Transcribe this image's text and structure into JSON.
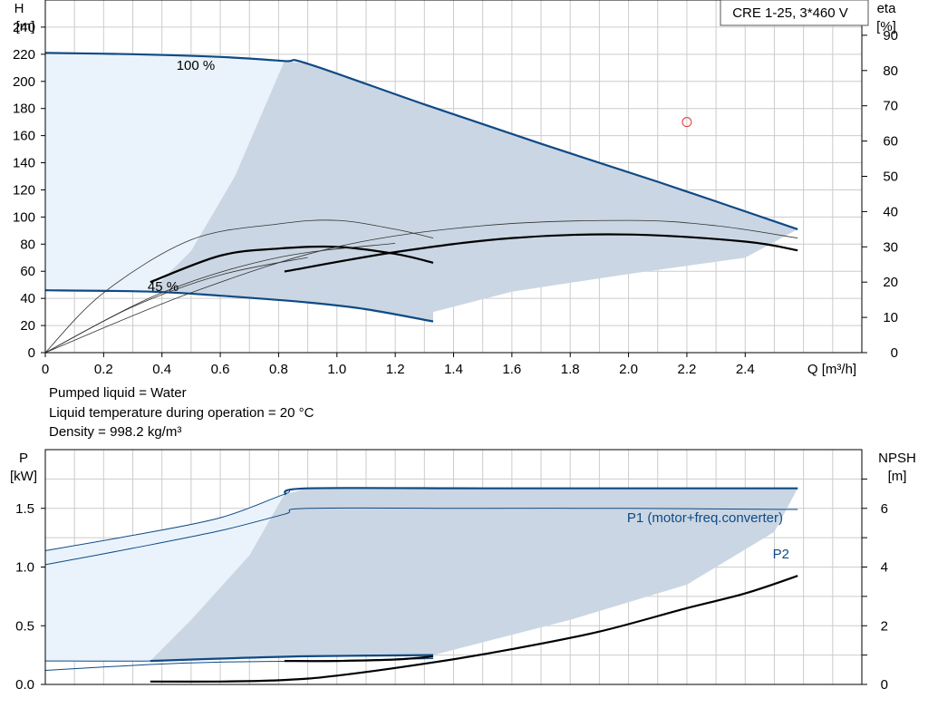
{
  "colors": {
    "curve_blue": "#0e4a85",
    "area_dark": "#cad6e3",
    "area_light": "#eaf3fb",
    "grid": "#cccccc",
    "duty_marker": "#e03030",
    "curve_black": "#000000"
  },
  "info": {
    "liquid": "Pumped liquid = Water",
    "temperature": "Liquid temperature during operation = 20 °C",
    "density": "Density = 998.2 kg/m³"
  },
  "chart_data": [
    {
      "type": "line",
      "title": "CRE 1-25, 3*460 V",
      "xlabel": "Q [m³/h]",
      "ylabel": "H\n[m]",
      "y2label": "eta\n[%]",
      "xlim": [
        0,
        2.8
      ],
      "ylim": [
        0,
        260
      ],
      "y2lim": [
        0,
        100
      ],
      "xticks": [
        "0",
        "0.2",
        "0.4",
        "0.6",
        "0.8",
        "1.0",
        "1.2",
        "1.4",
        "1.6",
        "1.8",
        "2.0",
        "2.2",
        "2.4"
      ],
      "yticks": [
        "0",
        "20",
        "40",
        "60",
        "80",
        "100",
        "120",
        "140",
        "160",
        "180",
        "200",
        "220",
        "240"
      ],
      "y2ticks": [
        "0",
        "10",
        "20",
        "30",
        "40",
        "50",
        "60",
        "70",
        "80",
        "90"
      ],
      "grid": true,
      "annotations": [
        "100 %",
        "45 %"
      ],
      "series": [
        {
          "role": "head-max",
          "x": [
            0,
            0.3,
            0.6,
            0.82,
            0.9,
            1.3,
            1.7,
            2.1,
            2.58
          ],
          "y": [
            221,
            220,
            218,
            215,
            213,
            183,
            154,
            126,
            91
          ]
        },
        {
          "role": "head-min",
          "x": [
            0,
            0.36,
            0.6,
            0.9,
            1.1,
            1.33
          ],
          "y": [
            46,
            45,
            42,
            37,
            32,
            23
          ]
        },
        {
          "role": "eta-low",
          "axis": "y2",
          "x": [
            0.36,
            0.6,
            0.8,
            1.0,
            1.2,
            1.33
          ],
          "y": [
            20,
            27.5,
            29.5,
            30,
            28,
            25.5
          ]
        },
        {
          "role": "eta-high",
          "axis": "y2",
          "x": [
            0.82,
            1.2,
            1.6,
            2.0,
            2.4,
            2.58
          ],
          "y": [
            23,
            28.5,
            32.5,
            33.5,
            31.5,
            29
          ]
        },
        {
          "role": "eta-low-full",
          "axis": "y2",
          "x": [
            0,
            0.2,
            0.5,
            0.8,
            1.0,
            1.2,
            1.33
          ],
          "y": [
            0,
            17,
            32,
            36.5,
            37.5,
            35,
            32.5
          ]
        },
        {
          "role": "eta-high-full",
          "axis": "y2",
          "x": [
            0,
            0.5,
            1.0,
            1.5,
            2.0,
            2.3,
            2.58
          ],
          "y": [
            0,
            17,
            30,
            36,
            37.5,
            36,
            32.5
          ]
        },
        {
          "role": "eta-ref-1",
          "axis": "y2",
          "x": [
            0,
            0.4,
            0.8,
            1.2
          ],
          "y": [
            0,
            17,
            27,
            31
          ]
        },
        {
          "role": "eta-ref-2",
          "axis": "y2",
          "x": [
            0,
            0.3,
            0.6,
            0.9
          ],
          "y": [
            0,
            13,
            22,
            27
          ]
        }
      ],
      "shaded_regions": [
        {
          "role": "operating-area",
          "boundary": [
            [
              0.82,
              215
            ],
            [
              0.9,
              213
            ],
            [
              1.3,
              183
            ],
            [
              1.7,
              154
            ],
            [
              2.1,
              126
            ],
            [
              2.58,
              91
            ],
            [
              2.4,
              70
            ],
            [
              2.0,
              58
            ],
            [
              1.6,
              45
            ],
            [
              1.33,
              30
            ],
            [
              1.33,
              23
            ],
            [
              1.1,
              32
            ],
            [
              0.9,
              37
            ],
            [
              0.6,
              42
            ],
            [
              0.36,
              45
            ],
            [
              0.5,
              75
            ],
            [
              0.65,
              130
            ],
            [
              0.75,
              180
            ],
            [
              0.82,
              215
            ]
          ]
        },
        {
          "role": "extended-area",
          "boundary": [
            [
              0,
              221
            ],
            [
              0.3,
              220
            ],
            [
              0.6,
              218
            ],
            [
              0.82,
              215
            ],
            [
              0.75,
              180
            ],
            [
              0.65,
              130
            ],
            [
              0.5,
              75
            ],
            [
              0.36,
              45
            ],
            [
              0,
              46
            ]
          ]
        }
      ],
      "markers": [
        {
          "role": "duty-point",
          "x": 2.2,
          "y": 170
        }
      ]
    },
    {
      "type": "line",
      "xlabel": "",
      "ylabel": "P\n[kW]",
      "y2label": "NPSH\n[m]",
      "xlim": [
        0,
        2.8
      ],
      "ylim": [
        0,
        2.0
      ],
      "y2lim": [
        0,
        8
      ],
      "yticks": [
        "0.0",
        "0.5",
        "1.0",
        "1.5"
      ],
      "y2ticks": [
        "0",
        "2",
        "4",
        "6"
      ],
      "grid": true,
      "series": [
        {
          "name": "P1 (motor+freq.converter)",
          "x": [
            0,
            0.3,
            0.6,
            0.82,
            0.9,
            1.5,
            2.0,
            2.58
          ],
          "y": [
            1.14,
            1.27,
            1.42,
            1.62,
            1.67,
            1.67,
            1.67,
            1.67
          ]
        },
        {
          "name": "P2",
          "x": [
            0,
            0.3,
            0.6,
            0.82,
            0.9,
            1.5,
            2.0,
            2.58
          ],
          "y": [
            1.02,
            1.16,
            1.31,
            1.45,
            1.5,
            1.5,
            1.5,
            1.49
          ]
        },
        {
          "role": "p1-min",
          "x": [
            0,
            0.36,
            0.6,
            0.9,
            1.33
          ],
          "y": [
            0.2,
            0.2,
            0.22,
            0.24,
            0.25
          ]
        },
        {
          "role": "p2-min",
          "x": [
            0,
            0.36,
            0.6,
            0.9,
            1.33
          ],
          "y": [
            0.12,
            0.17,
            0.19,
            0.2,
            0.22
          ]
        },
        {
          "role": "npsh",
          "axis": "y2",
          "x": [
            0.36,
            0.6,
            0.82,
            1.0,
            1.33,
            1.6,
            1.9,
            2.2,
            2.4,
            2.58
          ],
          "y": [
            0.1,
            0.1,
            0.15,
            0.3,
            0.75,
            1.2,
            1.8,
            2.6,
            3.1,
            3.7
          ]
        },
        {
          "role": "npsh-min",
          "axis": "y2",
          "x": [
            0.82,
            1.0,
            1.2,
            1.33
          ],
          "y": [
            0.8,
            0.8,
            0.85,
            0.95
          ]
        }
      ],
      "shaded_regions": [
        {
          "role": "operating-area",
          "boundary": [
            [
              0.82,
              1.62
            ],
            [
              0.9,
              1.67
            ],
            [
              1.5,
              1.67
            ],
            [
              2.0,
              1.67
            ],
            [
              2.58,
              1.67
            ],
            [
              2.5,
              1.3
            ],
            [
              2.2,
              0.85
            ],
            [
              1.8,
              0.55
            ],
            [
              1.33,
              0.25
            ],
            [
              0.9,
              0.24
            ],
            [
              0.6,
              0.22
            ],
            [
              0.36,
              0.2
            ],
            [
              0.5,
              0.55
            ],
            [
              0.7,
              1.1
            ],
            [
              0.82,
              1.62
            ]
          ]
        },
        {
          "role": "extended-area",
          "boundary": [
            [
              0,
              1.14
            ],
            [
              0.3,
              1.27
            ],
            [
              0.6,
              1.42
            ],
            [
              0.82,
              1.62
            ],
            [
              0.7,
              1.1
            ],
            [
              0.5,
              0.55
            ],
            [
              0.36,
              0.2
            ],
            [
              0,
              0.2
            ]
          ]
        }
      ]
    }
  ]
}
